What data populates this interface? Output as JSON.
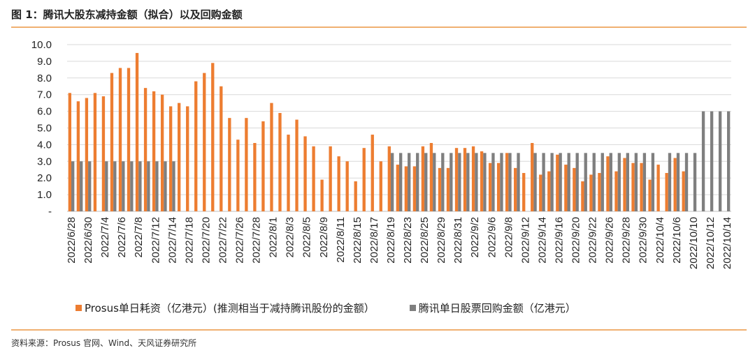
{
  "header": {
    "title": "图 1：腾讯大股东减持金额（拟合）以及回购金额"
  },
  "footer": {
    "source": "资料来源：Prosus 官网、Wind、天风证券研究所"
  },
  "colors": {
    "series1": "#ED7D31",
    "series2": "#7F7F7F",
    "grid": "#D9D9D9",
    "rule": "#F0B070"
  },
  "chart_data": {
    "type": "bar",
    "categories": [
      "2022/6/28",
      "2022/6/29",
      "2022/6/30",
      "2022/7/1",
      "2022/7/4",
      "2022/7/5",
      "2022/7/6",
      "2022/7/7",
      "2022/7/8",
      "2022/7/11",
      "2022/7/12",
      "2022/7/13",
      "2022/7/14",
      "2022/7/15",
      "2022/7/18",
      "2022/7/19",
      "2022/7/20",
      "2022/7/21",
      "2022/7/22",
      "2022/7/25",
      "2022/7/26",
      "2022/7/27",
      "2022/7/28",
      "2022/7/29",
      "2022/8/1",
      "2022/8/2",
      "2022/8/3",
      "2022/8/4",
      "2022/8/5",
      "2022/8/8",
      "2022/8/9",
      "2022/8/10",
      "2022/8/11",
      "2022/8/12",
      "2022/8/15",
      "2022/8/16",
      "2022/8/17",
      "2022/8/18",
      "2022/8/19",
      "2022/8/22",
      "2022/8/23",
      "2022/8/24",
      "2022/8/25",
      "2022/8/26",
      "2022/8/29",
      "2022/8/30",
      "2022/8/31",
      "2022/9/1",
      "2022/9/2",
      "2022/9/5",
      "2022/9/6",
      "2022/9/7",
      "2022/9/8",
      "2022/9/9",
      "2022/9/12",
      "2022/9/13",
      "2022/9/14",
      "2022/9/15",
      "2022/9/16",
      "2022/9/19",
      "2022/9/20",
      "2022/9/21",
      "2022/9/22",
      "2022/9/23",
      "2022/9/26",
      "2022/9/27",
      "2022/9/28",
      "2022/9/29",
      "2022/9/30",
      "2022/10/3",
      "2022/10/4",
      "2022/10/5",
      "2022/10/6",
      "2022/10/7",
      "2022/10/10",
      "2022/10/11",
      "2022/10/12",
      "2022/10/13",
      "2022/10/14"
    ],
    "tick_labels": [
      "2022/6/28",
      "2022/6/30",
      "2022/7/4",
      "2022/7/6",
      "2022/7/8",
      "2022/7/12",
      "2022/7/14",
      "2022/7/18",
      "2022/7/20",
      "2022/7/22",
      "2022/7/26",
      "2022/7/28",
      "2022/8/1",
      "2022/8/3",
      "2022/8/5",
      "2022/8/9",
      "2022/8/11",
      "2022/8/15",
      "2022/8/17",
      "2022/8/19",
      "2022/8/23",
      "2022/8/25",
      "2022/8/29",
      "2022/8/31",
      "2022/9/2",
      "2022/9/6",
      "2022/9/8",
      "2022/9/12",
      "2022/9/14",
      "2022/9/16",
      "2022/9/20",
      "2022/9/22",
      "2022/9/26",
      "2022/9/28",
      "2022/9/30",
      "2022/10/4",
      "2022/10/6",
      "2022/10/10",
      "2022/10/12",
      "2022/10/14"
    ],
    "series": [
      {
        "name": "Prosus单日耗资（亿港元）(推测相当于减持腾讯股份的金额）",
        "values": [
          7.1,
          6.6,
          6.8,
          7.1,
          6.9,
          8.3,
          8.6,
          8.6,
          9.5,
          7.4,
          7.2,
          7.0,
          6.3,
          6.5,
          6.3,
          7.8,
          8.3,
          8.9,
          7.5,
          5.6,
          4.3,
          5.6,
          4.1,
          5.4,
          6.5,
          5.9,
          4.6,
          5.5,
          4.5,
          3.9,
          1.9,
          3.9,
          3.3,
          3.0,
          1.8,
          3.8,
          4.6,
          3.0,
          3.9,
          2.8,
          2.7,
          2.7,
          3.9,
          4.1,
          2.6,
          2.6,
          3.8,
          3.8,
          3.9,
          3.6,
          2.9,
          2.9,
          3.5,
          2.6,
          2.3,
          4.1,
          2.2,
          2.4,
          3.4,
          2.8,
          2.6,
          1.8,
          2.2,
          2.3,
          3.3,
          2.4,
          3.2,
          2.9,
          2.9,
          1.9,
          2.8,
          2.3,
          3.2,
          2.4,
          0,
          0,
          0,
          0,
          0
        ]
      },
      {
        "name": "腾讯单日股票回购金额（亿港元）",
        "values": [
          3.0,
          3.0,
          3.0,
          0,
          3.0,
          3.0,
          3.0,
          3.0,
          3.0,
          3.0,
          3.0,
          3.0,
          3.0,
          0,
          0,
          0,
          0,
          0,
          0,
          0,
          0,
          0,
          0,
          0,
          0,
          0,
          0,
          0,
          0,
          0,
          0,
          0,
          0,
          0,
          0,
          0,
          0,
          0,
          3.5,
          3.5,
          3.5,
          3.5,
          3.5,
          3.5,
          3.5,
          3.5,
          3.5,
          3.5,
          3.5,
          3.5,
          3.5,
          3.5,
          3.5,
          3.5,
          0,
          3.5,
          3.5,
          3.5,
          3.5,
          3.5,
          3.5,
          3.5,
          3.5,
          3.5,
          3.5,
          3.5,
          3.5,
          3.5,
          3.5,
          3.5,
          0,
          3.5,
          3.5,
          3.5,
          3.5,
          6.0,
          6.0,
          6.0,
          6.0
        ]
      }
    ],
    "y_ticks": [
      "-",
      "1.0",
      "2.0",
      "3.0",
      "4.0",
      "5.0",
      "6.0",
      "7.0",
      "8.0",
      "9.0",
      "10.0"
    ],
    "ylim": [
      0,
      10
    ],
    "grid": true,
    "legend_position": "bottom"
  }
}
